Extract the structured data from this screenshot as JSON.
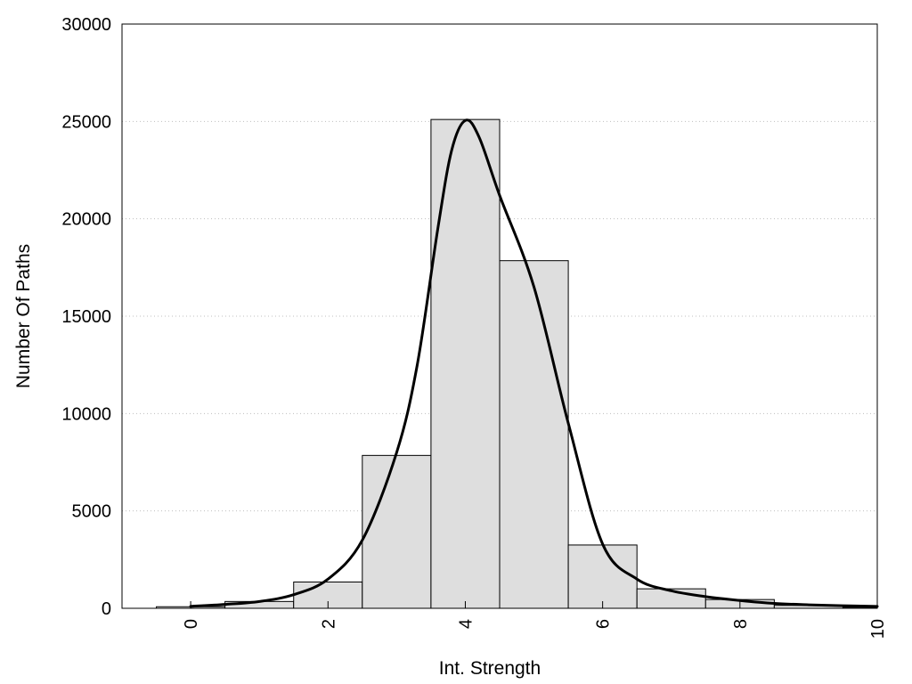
{
  "chart_data": {
    "type": "bar",
    "title": "",
    "xlabel": "Int. Strength",
    "ylabel": "Number Of Paths",
    "xlim": [
      -1,
      10
    ],
    "ylim": [
      0,
      30000
    ],
    "grid": true,
    "legend": "none",
    "x_ticks": [
      0,
      2,
      4,
      6,
      8,
      10
    ],
    "y_ticks": [
      0,
      5000,
      10000,
      15000,
      20000,
      25000,
      30000
    ],
    "categories": [
      0,
      1,
      2,
      3,
      4,
      5,
      6,
      7,
      8,
      9,
      10
    ],
    "values": [
      80,
      350,
      1350,
      7850,
      25100,
      17850,
      3250,
      1000,
      450,
      150,
      50
    ],
    "series": [
      {
        "type": "bar",
        "values": [
          80,
          350,
          1350,
          7850,
          25100,
          17850,
          3250,
          1000,
          450,
          150,
          50
        ]
      },
      {
        "type": "line",
        "x": [
          0,
          0.5,
          1,
          1.5,
          2,
          2.5,
          3,
          3.3,
          3.6,
          3.8,
          4,
          4.2,
          4.5,
          5,
          5.5,
          6,
          6.5,
          7,
          7.5,
          8,
          8.5,
          9,
          9.5,
          10
        ],
        "y": [
          100,
          200,
          350,
          700,
          1500,
          3500,
          8000,
          12500,
          19500,
          23500,
          25050,
          24200,
          21200,
          16500,
          9500,
          3300,
          1500,
          900,
          600,
          400,
          250,
          180,
          130,
          100
        ]
      }
    ]
  }
}
